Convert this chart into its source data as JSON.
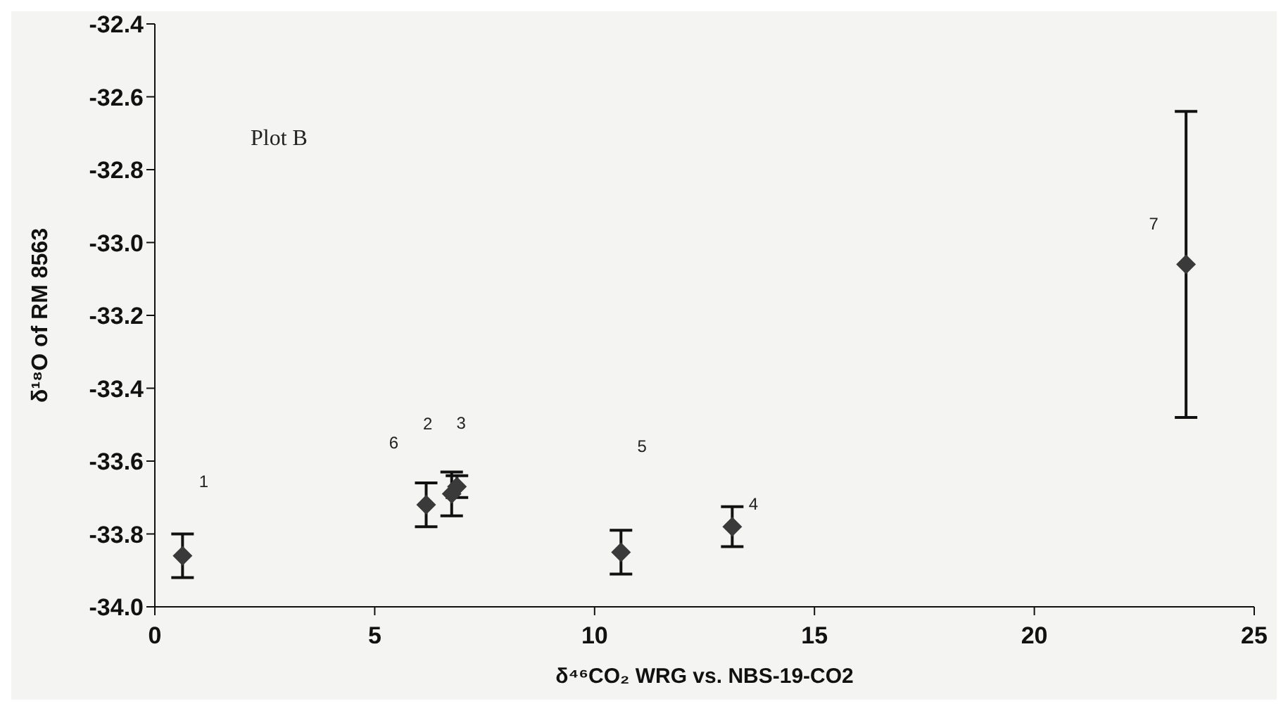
{
  "chart_data": {
    "type": "scatter",
    "xlabel": "δ⁴⁶CO₂ WRG vs. NBS-19-CO2",
    "ylabel": "δ¹⁸O of RM 8563",
    "x": [
      0.63,
      6.17,
      6.75,
      6.87,
      10.6,
      13.13,
      23.45
    ],
    "series": [
      {
        "color": "#3a3a3a",
        "values": [
          -33.86,
          -33.72,
          -33.69,
          -33.67,
          -33.85,
          -33.78,
          -33.06
        ],
        "errors": [
          0.06,
          0.06,
          0.06,
          0.03,
          0.06,
          0.055,
          0.42
        ]
      }
    ],
    "marker": "diamond",
    "xlim": [
      0,
      25
    ],
    "xticks": [
      0,
      5,
      10,
      15,
      20,
      25
    ],
    "ylim": [
      -34.0,
      -32.4
    ],
    "yticks": [
      {
        "value": -34,
        "label": "-34.0"
      },
      -33.8,
      -33.6,
      -33.4,
      -33.2,
      {
        "value": -33,
        "label": "-33.0"
      },
      -32.8,
      -32.6,
      -32.4
    ],
    "grid": false,
    "annotations": [
      "Plot B",
      "1",
      "6",
      "2",
      "3",
      "5",
      "4",
      "7"
    ]
  }
}
